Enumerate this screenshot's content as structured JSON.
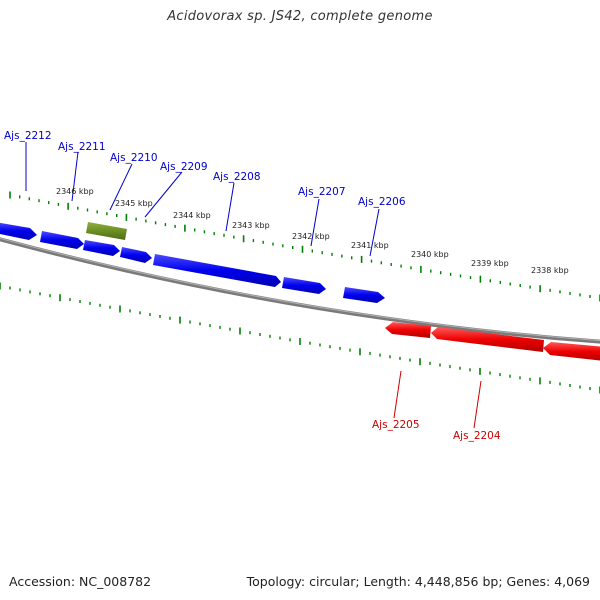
{
  "title": "Acidovorax sp. JS42, complete genome",
  "footer": {
    "accession": "Accession: NC_008782",
    "stats": "Topology: circular; Length: 4,448,856 bp; Genes: 4,069"
  },
  "colors": {
    "forward_gene": "#0000ee",
    "reverse_gene": "#ee0000",
    "highlight_gene": "#6b8e23",
    "backbone": "#808080",
    "ticks": "#008000",
    "label_text": "#222222"
  },
  "ticks": [
    {
      "label": "2346 kbp"
    },
    {
      "label": "2345 kbp"
    },
    {
      "label": "2344 kbp"
    },
    {
      "label": "2343 kbp"
    },
    {
      "label": "2342 kbp"
    },
    {
      "label": "2341 kbp"
    },
    {
      "label": "2340 kbp"
    },
    {
      "label": "2339 kbp"
    },
    {
      "label": "2338 kbp"
    }
  ],
  "forward_genes": [
    {
      "label": "Ajs_2212"
    },
    {
      "label": "Ajs_2211"
    },
    {
      "label": "Ajs_2210"
    },
    {
      "label": "Ajs_2209"
    },
    {
      "label": "Ajs_2208"
    },
    {
      "label": "Ajs_2207"
    },
    {
      "label": "Ajs_2206"
    }
  ],
  "reverse_genes": [
    {
      "label": "Ajs_2205"
    },
    {
      "label": "Ajs_2204"
    }
  ]
}
